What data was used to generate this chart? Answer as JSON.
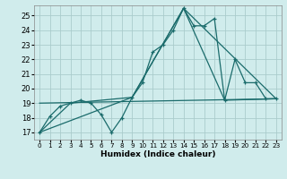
{
  "xlabel": "Humidex (Indice chaleur)",
  "bg_color": "#d0ecec",
  "grid_color": "#aacccc",
  "line_color": "#1a6b6b",
  "xlim": [
    -0.5,
    23.5
  ],
  "ylim": [
    16.5,
    25.7
  ],
  "yticks": [
    17,
    18,
    19,
    20,
    21,
    22,
    23,
    24,
    25
  ],
  "xticks": [
    0,
    1,
    2,
    3,
    4,
    5,
    6,
    7,
    8,
    9,
    10,
    11,
    12,
    13,
    14,
    15,
    16,
    17,
    18,
    19,
    20,
    21,
    22,
    23
  ],
  "series": [
    {
      "x": [
        0,
        1,
        2,
        3,
        4,
        5,
        6,
        7,
        8,
        9,
        10,
        11,
        12,
        13,
        14,
        15,
        16,
        17,
        18,
        19,
        20,
        21,
        22,
        23
      ],
      "y": [
        17.0,
        18.1,
        18.8,
        19.0,
        19.2,
        19.0,
        18.2,
        17.0,
        18.0,
        19.4,
        20.4,
        22.5,
        23.0,
        24.0,
        25.5,
        24.3,
        24.3,
        24.8,
        19.2,
        22.0,
        20.4,
        20.4,
        19.3,
        19.3
      ],
      "marker": true
    },
    {
      "x": [
        0,
        3,
        9,
        14,
        18,
        23
      ],
      "y": [
        17.0,
        19.0,
        19.4,
        25.5,
        19.2,
        19.3
      ],
      "marker": false
    },
    {
      "x": [
        0,
        9,
        14,
        23
      ],
      "y": [
        17.0,
        19.4,
        25.5,
        19.3
      ],
      "marker": false
    },
    {
      "x": [
        0,
        23
      ],
      "y": [
        19.0,
        19.3
      ],
      "marker": false
    }
  ]
}
